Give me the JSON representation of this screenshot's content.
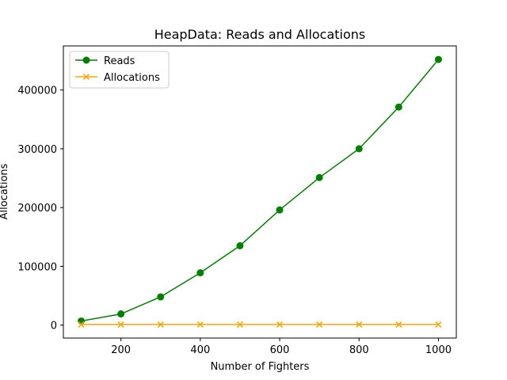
{
  "chart_data": {
    "type": "line",
    "title": "HeapData: Reads and Allocations",
    "xlabel": "Number of Fighters",
    "ylabel": "Allocations",
    "x": [
      100,
      200,
      300,
      400,
      500,
      600,
      700,
      800,
      900,
      1000
    ],
    "series": [
      {
        "name": "Reads",
        "values": [
          7000,
          19000,
          48000,
          89000,
          135000,
          196000,
          251000,
          300000,
          371000,
          452000
        ],
        "color": "#008000",
        "marker": "circle"
      },
      {
        "name": "Allocations",
        "values": [
          1000,
          1000,
          1000,
          1000,
          1000,
          1000,
          1000,
          1000,
          1000,
          1000
        ],
        "color": "#ffa500",
        "marker": "x"
      }
    ],
    "xlim": [
      55,
      1045
    ],
    "ylim": [
      -22000,
      475000
    ],
    "xticks": [
      200,
      400,
      600,
      800,
      1000
    ],
    "xtick_labels": [
      "200",
      "400",
      "600",
      "800",
      "1000"
    ],
    "yticks": [
      0,
      100000,
      200000,
      300000,
      400000
    ],
    "ytick_labels": [
      "0",
      "100000",
      "200000",
      "300000",
      "400000"
    ],
    "legend_position": "top-left",
    "grid": false
  }
}
